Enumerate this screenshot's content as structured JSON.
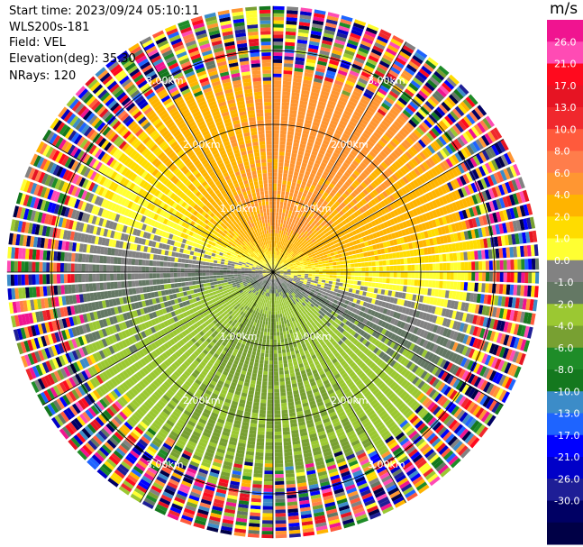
{
  "header": {
    "start_time": "Start time: 2023/09/24 05:10:11",
    "instrument": "WLS200s-181",
    "field": "Field: VEL",
    "elevation": "Elevation(deg): 35.30",
    "nrays": "NRays: 120"
  },
  "chart_data": {
    "type": "heatmap",
    "subtype": "polar-ppi",
    "field": "VEL",
    "units": "m/s",
    "rays": 120,
    "elevation_deg": 35.3,
    "range_rings_km": [
      1.0,
      2.0,
      3.0
    ],
    "ring_labels": [
      "1.00km",
      "2.00km",
      "3.00km"
    ],
    "max_range_km": 3.6,
    "spokes_every_deg": 30,
    "colorbar": {
      "units": "m/s",
      "tick_labels": [
        "26.0",
        "21.0",
        "17.0",
        "13.0",
        "10.0",
        "8.0",
        "6.0",
        "4.0",
        "2.0",
        "1.0",
        "0.0",
        "-1.0",
        "-2.0",
        "-4.0",
        "-6.0",
        "-8.0",
        "-10.0",
        "-13.0",
        "-17.0",
        "-21.0",
        "-26.0",
        "-30.0"
      ],
      "colors": [
        "#f01490",
        "#ff4bb4",
        "#ff0a1e",
        "#e61423",
        "#f0282d",
        "#ff5a3c",
        "#ff7d4b",
        "#ff9632",
        "#ffb400",
        "#ffdc00",
        "#ffff32",
        "#828282",
        "#647864",
        "#9bc832",
        "#78a032",
        "#1e8c28",
        "#14781e",
        "#3c8cc8",
        "#1e64ff",
        "#0000ff",
        "#0000c8",
        "#1e1e96",
        "#000064",
        "#000046"
      ]
    }
  }
}
